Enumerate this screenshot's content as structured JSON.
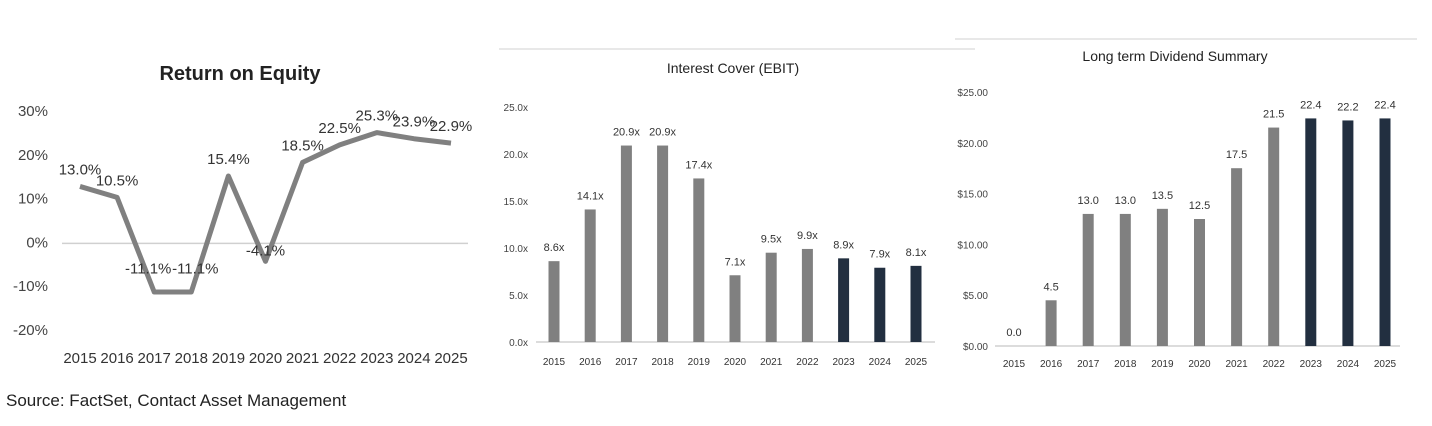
{
  "chart_data": [
    {
      "type": "line",
      "title": "Return on Equity",
      "categories": [
        "2015",
        "2016",
        "2017",
        "2018",
        "2019",
        "2020",
        "2021",
        "2022",
        "2023",
        "2024",
        "2025"
      ],
      "values": [
        13.0,
        10.5,
        -11.1,
        -11.1,
        15.4,
        -4.1,
        18.5,
        22.5,
        25.3,
        23.9,
        22.9
      ],
      "data_labels": [
        "13.0%",
        "10.5%",
        "-11.1%",
        "-11.1%",
        "15.4%",
        "-4.1%",
        "18.5%",
        "22.5%",
        "25.3%",
        "23.9%",
        "22.9%"
      ],
      "yticks": [
        "30%",
        "20%",
        "10%",
        "0%",
        "-10%",
        "-20%"
      ],
      "ytick_values": [
        30,
        20,
        10,
        0,
        -10,
        -20
      ],
      "ylim": [
        -20,
        30
      ],
      "color": "#808080"
    },
    {
      "type": "bar",
      "title": "Interest Cover (EBIT)",
      "categories": [
        "2015",
        "2016",
        "2017",
        "2018",
        "2019",
        "2020",
        "2021",
        "2022",
        "2023",
        "2024",
        "2025"
      ],
      "values": [
        8.6,
        14.1,
        20.9,
        20.9,
        17.4,
        7.1,
        9.5,
        9.9,
        8.9,
        7.9,
        8.1
      ],
      "data_labels": [
        "8.6x",
        "14.1x",
        "20.9x",
        "20.9x",
        "17.4x",
        "7.1x",
        "9.5x",
        "9.9x",
        "8.9x",
        "7.9x",
        "8.1x"
      ],
      "forecast_from": "2023",
      "yticks": [
        "25.0x",
        "20.0x",
        "15.0x",
        "10.0x",
        "5.0x",
        "0.0x"
      ],
      "ytick_values": [
        25,
        20,
        15,
        10,
        5,
        0
      ],
      "ylim": [
        0,
        25
      ],
      "colors": {
        "actual": "#808080",
        "forecast": "#222f40"
      }
    },
    {
      "type": "bar",
      "title": "Long term Dividend Summary",
      "categories": [
        "2015",
        "2016",
        "2017",
        "2018",
        "2019",
        "2020",
        "2021",
        "2022",
        "2023",
        "2024",
        "2025"
      ],
      "values": [
        0.0,
        4.5,
        13.0,
        13.0,
        13.5,
        12.5,
        17.5,
        21.5,
        22.4,
        22.2,
        22.4
      ],
      "data_labels": [
        "0.0",
        "4.5",
        "13.0",
        "13.0",
        "13.5",
        "12.5",
        "17.5",
        "21.5",
        "22.4",
        "22.2",
        "22.4"
      ],
      "forecast_from": "2023",
      "yticks": [
        "$25.00",
        "$20.00",
        "$15.00",
        "$10.00",
        "$5.00",
        "$0.00"
      ],
      "ytick_values": [
        25,
        20,
        15,
        10,
        5,
        0
      ],
      "ylim": [
        0,
        25
      ],
      "colors": {
        "actual": "#808080",
        "forecast": "#222f40"
      }
    }
  ],
  "source": "Source: FactSet, Contact Asset Management"
}
